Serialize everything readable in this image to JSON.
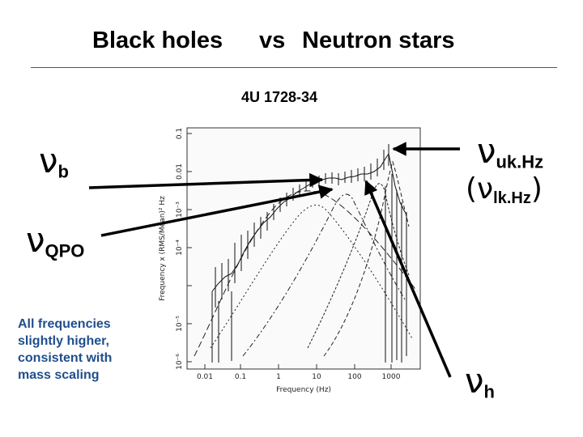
{
  "header": {
    "title_left": "Black holes",
    "title_vs": "vs",
    "title_right": "Neutron stars",
    "source": "4U 1728-34"
  },
  "labels": {
    "nu_b": {
      "symbol": "ν",
      "sub": "b"
    },
    "nu_qpo": {
      "symbol": "ν",
      "sub": "QPO"
    },
    "nu_ukhz": {
      "symbol": "ν",
      "sub": "uk.Hz"
    },
    "nu_lkhz": {
      "open": "(",
      "symbol": "ν",
      "sub": "lk.Hz",
      "close": ")"
    },
    "nu_h": {
      "symbol": "ν",
      "sub": "h"
    }
  },
  "note": "All frequencies slightly higher, consistent with mass scaling",
  "plot": {
    "xlabel": "Frequency (Hz)",
    "ylabel": "Frequency x (RMS/Mean)² Hz",
    "xticks": [
      "0.01",
      "0.1",
      "1",
      "10",
      "100",
      "1000"
    ],
    "yticks": [
      "0.1",
      "0.01",
      "10⁻³",
      "10⁻⁴",
      "10⁻⁵",
      "10⁻⁶"
    ]
  }
}
